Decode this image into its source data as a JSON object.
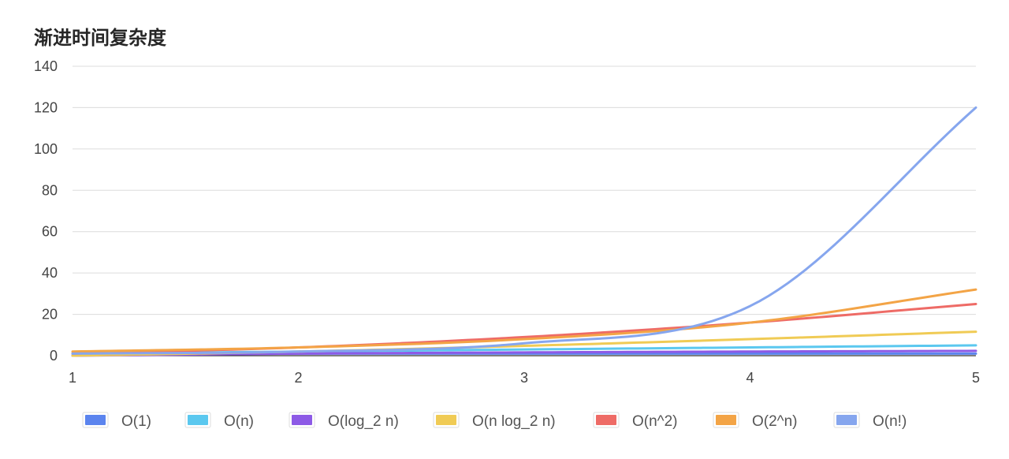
{
  "chart_data": {
    "type": "line",
    "title": "渐进时间复杂度",
    "x": [
      1,
      2,
      3,
      4,
      5
    ],
    "xlim": [
      1,
      5
    ],
    "ylim": [
      0,
      140
    ],
    "x_ticks": [
      "1",
      "2",
      "3",
      "4",
      "5"
    ],
    "y_ticks": [
      "0",
      "20",
      "40",
      "60",
      "80",
      "100",
      "120",
      "140"
    ],
    "grid": true,
    "legend_position": "bottom",
    "series": [
      {
        "name": "O(1)",
        "color": "#5b84ee",
        "values": [
          1,
          1,
          1,
          1,
          1
        ]
      },
      {
        "name": "O(n)",
        "color": "#5bc8ef",
        "values": [
          1,
          2,
          3,
          4,
          5
        ]
      },
      {
        "name": "O(log_2 n)",
        "color": "#8d5ae6",
        "values": [
          0,
          1,
          1.58,
          2,
          2.32
        ]
      },
      {
        "name": "O(n log_2 n)",
        "color": "#f0cb55",
        "values": [
          0,
          2,
          4.75,
          8,
          11.61
        ]
      },
      {
        "name": "O(n^2)",
        "color": "#ee6b66",
        "values": [
          1,
          4,
          9,
          16,
          25
        ]
      },
      {
        "name": "O(2^n)",
        "color": "#f3a446",
        "values": [
          2,
          4,
          8,
          16,
          32
        ]
      },
      {
        "name": "O(n!)",
        "color": "#86a6ee",
        "values": [
          1,
          2,
          6,
          24,
          120
        ]
      }
    ]
  }
}
